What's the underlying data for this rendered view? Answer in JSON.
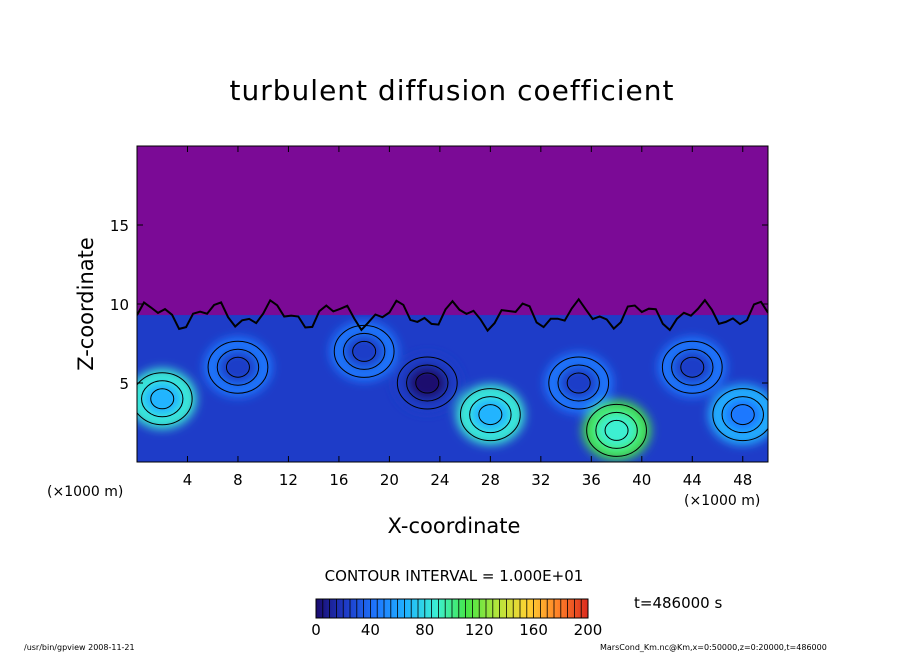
{
  "chart_data": {
    "type": "heatmap",
    "title": "turbulent diffusion coefficient",
    "xlabel": "X-coordinate",
    "ylabel": "Z-coordinate",
    "x_unit_label": "(×1000 m)",
    "xlim": [
      0,
      50
    ],
    "ylim": [
      0,
      20
    ],
    "x_ticks": [
      4,
      8,
      12,
      16,
      20,
      24,
      28,
      32,
      36,
      40,
      44,
      48
    ],
    "y_ticks": [
      5,
      10,
      15
    ],
    "contour_interval_label": "CONTOUR INTERVAL = 1.000E+01",
    "time_label": "t=486000 s",
    "colorbar": {
      "min": 0,
      "max": 200,
      "ticks": [
        0,
        40,
        80,
        120,
        160,
        200
      ],
      "colors": [
        "#1a0a6e",
        "#1e3cc8",
        "#1e78ff",
        "#20b4ff",
        "#3cf0d2",
        "#46e646",
        "#b4e63c",
        "#ffd232",
        "#ff8228",
        "#dc2a1e"
      ]
    },
    "background_value_color": "#7b0a96",
    "mixed_layer_top_km": 9.3,
    "eddies": [
      {
        "x": 2,
        "z": 4,
        "level": 60
      },
      {
        "x": 8,
        "z": 6,
        "level": 30
      },
      {
        "x": 18,
        "z": 7,
        "level": 20
      },
      {
        "x": 23,
        "z": 5,
        "level": 15
      },
      {
        "x": 28,
        "z": 3,
        "level": 70
      },
      {
        "x": 35,
        "z": 5,
        "level": 20
      },
      {
        "x": 38,
        "z": 2,
        "level": 80
      },
      {
        "x": 44,
        "z": 6,
        "level": 35
      },
      {
        "x": 48,
        "z": 3,
        "level": 50
      }
    ]
  },
  "footer": {
    "left": "/usr/bin/gpview   2008-11-21",
    "right": "MarsCond_Km.nc@Km,x=0:50000,z=0:20000,t=486000"
  }
}
